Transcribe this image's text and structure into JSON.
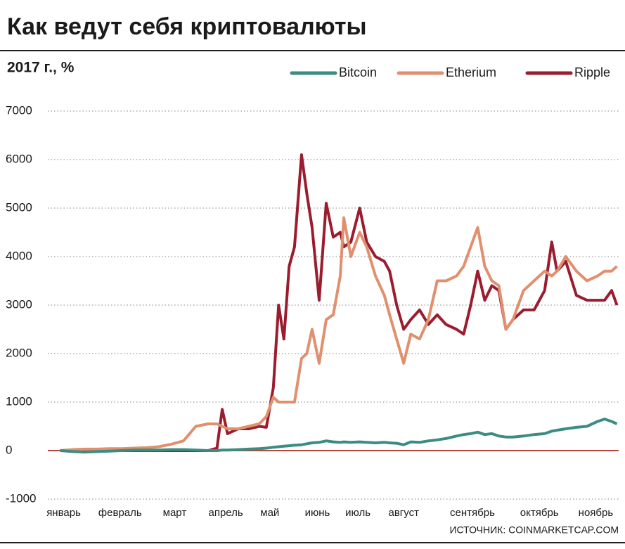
{
  "chart_data": {
    "type": "line",
    "title": "Как ведут себя криптовалюты",
    "subtitle": "2017 г., %",
    "source": "ИСТОЧНИК: COINMARKETCAP.COM",
    "x": [
      1,
      8,
      15,
      22,
      29,
      36,
      43,
      50,
      57,
      64,
      71,
      78,
      85,
      90,
      93,
      96,
      102,
      108,
      114,
      118,
      122,
      125,
      128,
      131,
      134,
      138,
      141,
      144,
      148,
      152,
      156,
      160,
      162,
      166,
      171,
      175,
      180,
      185,
      188,
      192,
      196,
      200,
      205,
      210,
      215,
      220,
      226,
      230,
      234,
      238,
      242,
      246,
      250,
      254,
      258,
      264,
      270,
      276,
      280,
      283,
      288,
      294,
      300,
      306,
      310,
      314,
      317
    ],
    "xlim": [
      -6,
      318
    ],
    "xticks": [
      {
        "value": 3,
        "label": "январь"
      },
      {
        "value": 35,
        "label": "февраль"
      },
      {
        "value": 66,
        "label": "март"
      },
      {
        "value": 95,
        "label": "апрель"
      },
      {
        "value": 120,
        "label": "май"
      },
      {
        "value": 147,
        "label": "июнь"
      },
      {
        "value": 170,
        "label": "июль"
      },
      {
        "value": 196,
        "label": "август"
      },
      {
        "value": 235,
        "label": "сентябрь"
      },
      {
        "value": 273,
        "label": "октябрь"
      },
      {
        "value": 305,
        "label": "ноябрь"
      }
    ],
    "ylim": [
      -1000,
      7000
    ],
    "yticks": [
      -1000,
      0,
      1000,
      2000,
      3000,
      4000,
      5000,
      6000,
      7000
    ],
    "grid": true,
    "legend": "top-right",
    "series": [
      {
        "name": "Bitcoin",
        "color": "#3b8c82",
        "values": [
          0,
          -20,
          -30,
          -20,
          -10,
          0,
          10,
          10,
          10,
          20,
          20,
          10,
          0,
          0,
          10,
          10,
          20,
          30,
          40,
          50,
          70,
          80,
          90,
          100,
          110,
          120,
          140,
          160,
          170,
          200,
          180,
          170,
          180,
          170,
          180,
          170,
          160,
          170,
          160,
          150,
          120,
          180,
          170,
          200,
          220,
          250,
          300,
          330,
          350,
          380,
          330,
          350,
          300,
          280,
          280,
          300,
          330,
          350,
          400,
          420,
          450,
          480,
          500,
          600,
          650,
          600,
          550
        ]
      },
      {
        "name": "Etherium",
        "color": "#e0906e",
        "values": [
          0,
          20,
          30,
          30,
          40,
          40,
          50,
          60,
          80,
          130,
          200,
          500,
          550,
          550,
          500,
          450,
          450,
          500,
          550,
          700,
          1100,
          1000,
          1000,
          1000,
          1000,
          1900,
          2000,
          2500,
          1800,
          2700,
          2800,
          3600,
          4800,
          4000,
          4500,
          4200,
          3600,
          3200,
          2800,
          2300,
          1800,
          2400,
          2300,
          2700,
          3500,
          3500,
          3600,
          3800,
          4200,
          4600,
          3800,
          3500,
          3400,
          2500,
          2700,
          3300,
          3500,
          3700,
          3600,
          3700,
          4000,
          3700,
          3500,
          3600,
          3700,
          3700,
          3800
        ]
      },
      {
        "name": "Ripple",
        "color": "#9b1c2e",
        "values": [
          0,
          0,
          0,
          0,
          0,
          0,
          0,
          0,
          0,
          0,
          0,
          0,
          0,
          50,
          850,
          350,
          450,
          450,
          500,
          480,
          1300,
          3000,
          2300,
          3800,
          4200,
          6100,
          5300,
          4600,
          3100,
          5100,
          4400,
          4500,
          4200,
          4300,
          5000,
          4300,
          4000,
          3900,
          3700,
          3000,
          2500,
          2700,
          2900,
          2600,
          2800,
          2600,
          2500,
          2400,
          3000,
          3700,
          3100,
          3400,
          3300,
          2500,
          2700,
          2900,
          2900,
          3300,
          4300,
          3700,
          3900,
          3200,
          3100,
          3100,
          3100,
          3300,
          3000
        ]
      }
    ]
  }
}
